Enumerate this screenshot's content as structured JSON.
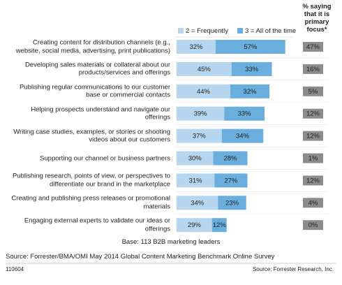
{
  "chart_data": {
    "type": "stacked_barh",
    "categories": [
      "Creating content for distribution channels (e.g., website, social media, advertising, print publications)",
      "Developing sales materials or collateral about our products/services and offerings",
      "Publishing regular communications to our customer base or commercial contacts",
      "Helping prospects understand and navigate our offerings",
      "Writing case studies, examples, or stories or shooting videos about our customers",
      "Supporting our channel or business partners",
      "Publishing research, points of view, or perspectives to differentiate our brand in the marketplace",
      "Creating and publishing press releases or promotional materials",
      "Engaging external experts to validate our ideas or offerings"
    ],
    "series": [
      {
        "name": "2 = Frequently",
        "color": "#b5d6ee",
        "values": [
          32,
          45,
          44,
          39,
          37,
          30,
          31,
          34,
          29
        ],
        "value_labels": [
          "32%",
          "45%",
          "44%",
          "39%",
          "37%",
          "30%",
          "31%",
          "34%",
          "29%"
        ]
      },
      {
        "name": "3 = All of the time",
        "color": "#6aaedd",
        "values": [
          57,
          33,
          32,
          33,
          34,
          28,
          27,
          23,
          12
        ],
        "value_labels": [
          "57%",
          "33%",
          "32%",
          "33%",
          "34%",
          "28%",
          "27%",
          "23%",
          "12%"
        ]
      }
    ],
    "primary_focus": {
      "name": "% saying that it is primary focus*",
      "color": "#8c8c8c",
      "values": [
        47,
        16,
        5,
        12,
        12,
        1,
        12,
        4,
        0
      ],
      "value_labels": [
        "47%",
        "16%",
        "5%",
        "12%",
        "12%",
        "1%",
        "12%",
        "4%",
        "0%"
      ]
    },
    "base_note": "Base: 113 B2B marketing leaders",
    "source": "Source: Forrester/BMA/OMI May 2014 Global Content Marketing Benchmark Online Survey",
    "footer_id": "110604",
    "footer_source": "Source: Forrester Research, Inc."
  }
}
